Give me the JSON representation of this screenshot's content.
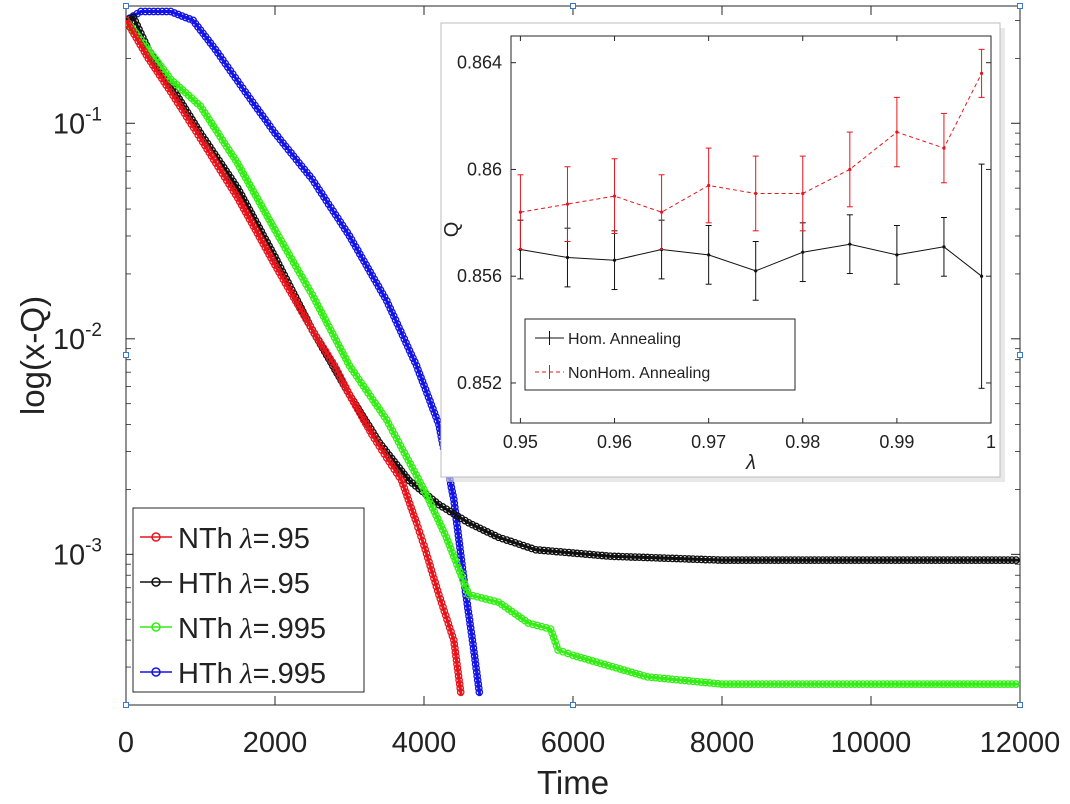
{
  "chart_data": [
    {
      "type": "line",
      "id": "main",
      "xlabel": "Time",
      "ylabel": "log(x-Q)",
      "yscale": "log",
      "xlim": [
        0,
        12000
      ],
      "ylim": [
        0.0002,
        0.35
      ],
      "xticks": [
        0,
        2000,
        4000,
        6000,
        8000,
        10000,
        12000
      ],
      "xtick_labels": [
        "0",
        "2000",
        "4000",
        "6000",
        "8000",
        "10000",
        "12000"
      ],
      "yticks": [
        0.001,
        0.01,
        0.1
      ],
      "ytick_labels": [
        {
          "base": "10",
          "exp": "-3"
        },
        {
          "base": "10",
          "exp": "-2"
        },
        {
          "base": "10",
          "exp": "-1"
        }
      ],
      "legend_position": "bottom-left",
      "series": [
        {
          "name": "NTh",
          "lambda": ".95",
          "color": "#e8141c",
          "points": [
            [
              0,
              0.3
            ],
            [
              300,
              0.2
            ],
            [
              600,
              0.14
            ],
            [
              1000,
              0.085
            ],
            [
              1500,
              0.045
            ],
            [
              2000,
              0.022
            ],
            [
              2500,
              0.011
            ],
            [
              2800,
              0.0075
            ],
            [
              3000,
              0.0055
            ],
            [
              3300,
              0.0036
            ],
            [
              3500,
              0.0028
            ],
            [
              3700,
              0.0022
            ],
            [
              3900,
              0.0014
            ],
            [
              4000,
              0.0011
            ],
            [
              4200,
              0.00065
            ],
            [
              4400,
              0.0004
            ],
            [
              4500,
              0.00022
            ]
          ]
        },
        {
          "name": "HTh",
          "lambda": ".95",
          "color": "#111111",
          "points": [
            [
              0,
              0.3
            ],
            [
              100,
              0.31
            ],
            [
              300,
              0.22
            ],
            [
              600,
              0.15
            ],
            [
              1000,
              0.09
            ],
            [
              1500,
              0.05
            ],
            [
              2000,
              0.024
            ],
            [
              2500,
              0.011
            ],
            [
              3000,
              0.0055
            ],
            [
              3400,
              0.0033
            ],
            [
              3800,
              0.0022
            ],
            [
              4200,
              0.0017
            ],
            [
              4600,
              0.0014
            ],
            [
              5000,
              0.0012
            ],
            [
              5500,
              0.00105
            ],
            [
              6500,
              0.00098
            ],
            [
              8000,
              0.00094
            ],
            [
              12000,
              0.00094
            ]
          ]
        },
        {
          "name": "NTh",
          "lambda": ".995",
          "color": "#33ee14",
          "points": [
            [
              0,
              0.3
            ],
            [
              300,
              0.22
            ],
            [
              600,
              0.16
            ],
            [
              1000,
              0.12
            ],
            [
              1500,
              0.065
            ],
            [
              2000,
              0.032
            ],
            [
              2500,
              0.016
            ],
            [
              3000,
              0.0075
            ],
            [
              3500,
              0.0042
            ],
            [
              4000,
              0.002
            ],
            [
              4300,
              0.0012
            ],
            [
              4600,
              0.00065
            ],
            [
              5000,
              0.0006
            ],
            [
              5400,
              0.00048
            ],
            [
              5700,
              0.00045
            ],
            [
              5800,
              0.00036
            ],
            [
              6000,
              0.00034
            ],
            [
              7000,
              0.00027
            ],
            [
              8000,
              0.00025
            ],
            [
              12000,
              0.00025
            ]
          ]
        },
        {
          "name": "HTh",
          "lambda": ".995",
          "color": "#1414e6",
          "points": [
            [
              0,
              0.3
            ],
            [
              200,
              0.33
            ],
            [
              600,
              0.33
            ],
            [
              900,
              0.3
            ],
            [
              1200,
              0.22
            ],
            [
              1600,
              0.14
            ],
            [
              2000,
              0.09
            ],
            [
              2500,
              0.055
            ],
            [
              3000,
              0.03
            ],
            [
              3500,
              0.015
            ],
            [
              3900,
              0.0075
            ],
            [
              4200,
              0.004
            ],
            [
              4400,
              0.0018
            ],
            [
              4550,
              0.0007
            ],
            [
              4650,
              0.0004
            ],
            [
              4750,
              0.00022
            ]
          ]
        }
      ]
    },
    {
      "type": "line",
      "id": "inset",
      "xlabel": "λ",
      "ylabel": "Q",
      "xlim": [
        0.949,
        1.0
      ],
      "ylim": [
        0.8505,
        0.865
      ],
      "xticks": [
        0.95,
        0.96,
        0.97,
        0.98,
        0.99,
        1
      ],
      "xtick_labels": [
        "0.95",
        "0.96",
        "0.97",
        "0.98",
        "0.99",
        "1"
      ],
      "yticks": [
        0.852,
        0.856,
        0.86,
        0.864
      ],
      "ytick_labels": [
        "0.852",
        "0.856",
        "0.86",
        "0.864"
      ],
      "legend_position": "bottom-left",
      "x": [
        0.95,
        0.955,
        0.96,
        0.965,
        0.97,
        0.975,
        0.98,
        0.985,
        0.99,
        0.995,
        0.999
      ],
      "series": [
        {
          "name": "Hom. Annealing",
          "color": "#111111",
          "style": "solid",
          "values": [
            0.857,
            0.8567,
            0.8566,
            0.857,
            0.8568,
            0.8562,
            0.8569,
            0.8572,
            0.8568,
            0.8571,
            0.856
          ],
          "errors": [
            0.0011,
            0.0011,
            0.0011,
            0.0011,
            0.0011,
            0.0011,
            0.0011,
            0.0011,
            0.0011,
            0.0011,
            0.0042
          ]
        },
        {
          "name": "NonHom. Annealing",
          "color": "#e8141c",
          "style": "dashed",
          "values": [
            0.8584,
            0.8587,
            0.859,
            0.8584,
            0.8594,
            0.8591,
            0.8591,
            0.86,
            0.8614,
            0.8608,
            0.8636
          ],
          "errors": [
            0.0014,
            0.0014,
            0.0014,
            0.0014,
            0.0014,
            0.0014,
            0.0014,
            0.0014,
            0.0013,
            0.0013,
            0.0009
          ]
        }
      ]
    }
  ]
}
